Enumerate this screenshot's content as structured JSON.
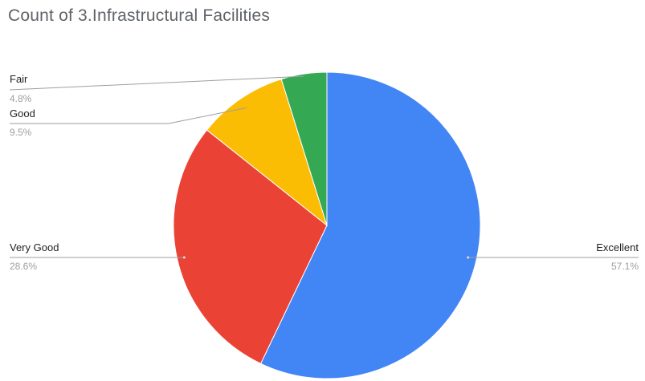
{
  "chart_data": {
    "type": "pie",
    "title": "Count of 3.Infrastructural Facilities",
    "slices": [
      {
        "label": "Excellent",
        "value": 57.1,
        "percent_label": "57.1%",
        "color": "#4285f4"
      },
      {
        "label": "Very Good",
        "value": 28.6,
        "percent_label": "28.6%",
        "color": "#ea4335"
      },
      {
        "label": "Good",
        "value": 9.5,
        "percent_label": "9.5%",
        "color": "#fbbc04"
      },
      {
        "label": "Fair",
        "value": 4.8,
        "percent_label": "4.8%",
        "color": "#34a853"
      }
    ],
    "start_angle_deg": 0,
    "direction": "clockwise",
    "legend": "labels-with-leader-lines"
  }
}
